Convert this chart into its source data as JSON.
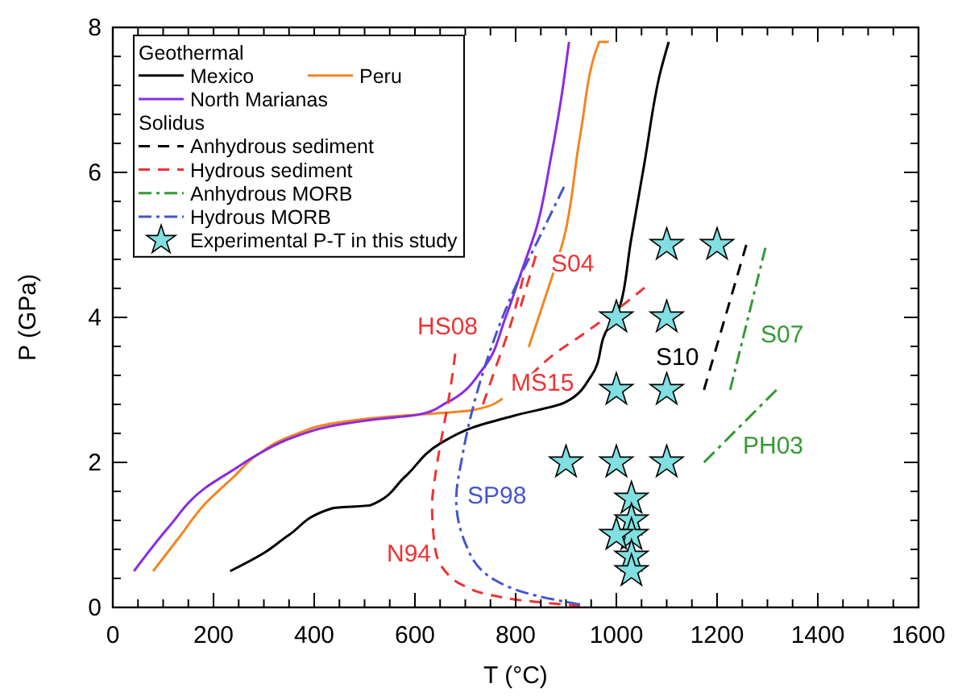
{
  "chart_data": {
    "type": "line",
    "xlabel": "T (°C)",
    "ylabel": "P (GPa)",
    "xlim": [
      0,
      1600
    ],
    "ylim": [
      0,
      8
    ],
    "xticks": [
      0,
      {
        "value": 50,
        "label": null
      },
      {
        "value": 100,
        "label": null
      },
      {
        "value": 150,
        "label": null
      },
      200,
      {
        "value": 250,
        "label": null
      },
      {
        "value": 300,
        "label": null
      },
      {
        "value": 350,
        "label": null
      },
      400,
      {
        "value": 450,
        "label": null
      },
      {
        "value": 500,
        "label": null
      },
      {
        "value": 550,
        "label": null
      },
      600,
      {
        "value": 650,
        "label": null
      },
      {
        "value": 700,
        "label": null
      },
      {
        "value": 750,
        "label": null
      },
      800,
      {
        "value": 850,
        "label": null
      },
      {
        "value": 900,
        "label": null
      },
      {
        "value": 950,
        "label": null
      },
      1000,
      {
        "value": 1050,
        "label": null
      },
      {
        "value": 1100,
        "label": null
      },
      {
        "value": 1150,
        "label": null
      },
      1200,
      {
        "value": 1250,
        "label": null
      },
      {
        "value": 1300,
        "label": null
      },
      {
        "value": 1350,
        "label": null
      },
      1400,
      {
        "value": 1450,
        "label": null
      },
      {
        "value": 1500,
        "label": null
      },
      {
        "value": 1550,
        "label": null
      },
      1600
    ],
    "yticks": [
      0,
      {
        "value": 0.4,
        "label": null
      },
      {
        "value": 0.8,
        "label": null
      },
      {
        "value": 1.2,
        "label": null
      },
      {
        "value": 1.6,
        "label": null
      },
      2,
      {
        "value": 2.4,
        "label": null
      },
      {
        "value": 2.8,
        "label": null
      },
      {
        "value": 3.2,
        "label": null
      },
      {
        "value": 3.6,
        "label": null
      },
      4,
      {
        "value": 4.4,
        "label": null
      },
      {
        "value": 4.8,
        "label": null
      },
      {
        "value": 5.2,
        "label": null
      },
      {
        "value": 5.6,
        "label": null
      },
      6,
      {
        "value": 6.4,
        "label": null
      },
      {
        "value": 6.8,
        "label": null
      },
      {
        "value": 7.2,
        "label": null
      },
      {
        "value": 7.6,
        "label": null
      },
      8
    ],
    "legend": "top left",
    "legend_title": "Geothermal",
    "series": [
      {
        "name": "Mexico",
        "color": "#000000",
        "line_style": "solid",
        "x": [
          233,
          300,
          350,
          437,
          512,
          580,
          650,
          714,
          800,
          896,
          950,
          986,
          1000,
          1030,
          1056,
          1088,
          1104
        ],
        "values": [
          0.5,
          0.75,
          1.0,
          1.37,
          1.41,
          1.8,
          2.26,
          2.48,
          2.65,
          2.82,
          3.19,
          3.88,
          4.0,
          5.1,
          6.14,
          7.4,
          7.8
        ]
      },
      {
        "name": "Peru",
        "color": "#f28522",
        "line_style": "solid",
        "x": [
          80,
          130,
          182,
          240,
          288,
          360,
          448,
          530,
          608,
          714,
          774,
          800,
          826,
          860,
          896,
          928,
          966,
          985
        ],
        "values": [
          0.5,
          0.95,
          1.42,
          1.8,
          2.11,
          2.38,
          2.55,
          2.62,
          2.66,
          2.72,
          2.88,
          null,
          3.59,
          4.3,
          5.1,
          6.5,
          7.8,
          7.8
        ]
      },
      {
        "name": "North Marianas",
        "color": "#8a2be2",
        "line_style": "solid",
        "x": [
          42,
          110,
          182,
          240,
          288,
          360,
          448,
          530,
          608,
          662,
          736,
          780,
          810,
          842,
          870,
          890,
          906
        ],
        "values": [
          0.5,
          1.1,
          1.64,
          1.9,
          2.11,
          2.35,
          2.52,
          2.6,
          2.66,
          2.82,
          3.3,
          4.0,
          4.6,
          5.25,
          6.2,
          7.0,
          7.8
        ]
      },
      {
        "name": "Anhydrous sediment",
        "color": "#000000",
        "line_style": "dashed",
        "x": [
          1174,
          1258
        ],
        "values": [
          3.0,
          5.0
        ]
      },
      {
        "name": "Hydrous sediment",
        "color": "#ee3333",
        "line_style": "dashed",
        "x": [
          680,
          670,
          660,
          650,
          640,
          634,
          640,
          660,
          694,
          750,
          821,
          928
        ],
        "values": [
          3.5,
          3.0,
          2.6,
          2.23,
          1.8,
          1.41,
          0.82,
          0.5,
          0.31,
          0.17,
          0.09,
          0.02
        ]
      },
      {
        "color": "#ee3333",
        "line_style": "dashed",
        "x": [
          735,
          760,
          790,
          815
        ],
        "values": [
          2.8,
          3.3,
          3.9,
          4.55
        ]
      },
      {
        "color": "#ee3333",
        "line_style": "dashed",
        "x": [
          810,
          840
        ],
        "values": [
          4.15,
          4.85
        ]
      },
      {
        "color": "#ee3333",
        "line_style": "dashed",
        "x": [
          830,
          874,
          928,
          1000,
          1056
        ],
        "values": [
          3.2,
          3.48,
          3.74,
          4.1,
          4.41
        ]
      },
      {
        "name": "Anhydrous MORB",
        "color": "#339933",
        "line_style": "dashdot",
        "x": [
          1226,
          1296
        ],
        "values": [
          3.0,
          4.96
        ]
      },
      {
        "color": "#339933",
        "line_style": "dashdot",
        "x": [
          1174,
          1318
        ],
        "values": [
          2.0,
          3.0
        ]
      },
      {
        "name": "Hydrous MORB",
        "color": "#4455cc",
        "line_style": "dashdot",
        "x": [
          896,
          842,
          800,
          736,
          694,
          682,
          704,
          758,
          842,
          928
        ],
        "values": [
          5.8,
          5.03,
          4.43,
          3.26,
          2.08,
          1.49,
          0.82,
          0.38,
          0.16,
          0.04
        ]
      },
      {
        "name": "Experimental P-T in this study",
        "type": "scatter",
        "marker": "star",
        "color": "#80dfe0",
        "x": [
          1100,
          1200,
          1000,
          1100,
          1000,
          1100,
          900,
          1000,
          1100,
          1030,
          1030,
          1030,
          1000,
          1030,
          1030
        ],
        "values": [
          5,
          5,
          4,
          4,
          3,
          3,
          2,
          2,
          2,
          1.5,
          1.2,
          1.0,
          1.0,
          0.7,
          0.5
        ]
      }
    ],
    "annotations": [
      "Solidus",
      "S04",
      "HS08",
      "MS15",
      "S10",
      "S07",
      "PH03",
      "SP98",
      "N94"
    ]
  }
}
